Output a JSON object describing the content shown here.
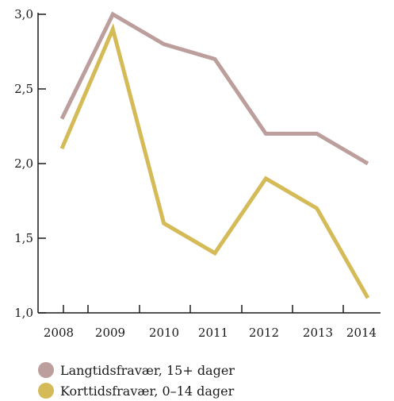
{
  "chart_data": {
    "type": "line",
    "categories": [
      "2008",
      "2009",
      "2010",
      "2011",
      "2012",
      "2013",
      "2014"
    ],
    "series": [
      {
        "name": "Langtidsfravær, 15+ dager",
        "color": "#bc9e9c",
        "values": [
          2.3,
          3.0,
          2.8,
          2.7,
          2.2,
          2.2,
          2.0
        ]
      },
      {
        "name": "Korttidsfravær, 0–14 dager",
        "color": "#d4bb58",
        "values": [
          2.1,
          2.9,
          1.6,
          1.4,
          1.9,
          1.7,
          1.1
        ]
      }
    ],
    "ylim": [
      1.0,
      3.0
    ],
    "yticks": [
      "1,0",
      "1,5",
      "2,0",
      "2,5",
      "3,0"
    ],
    "grid": false,
    "legend_position": "bottom-left"
  }
}
